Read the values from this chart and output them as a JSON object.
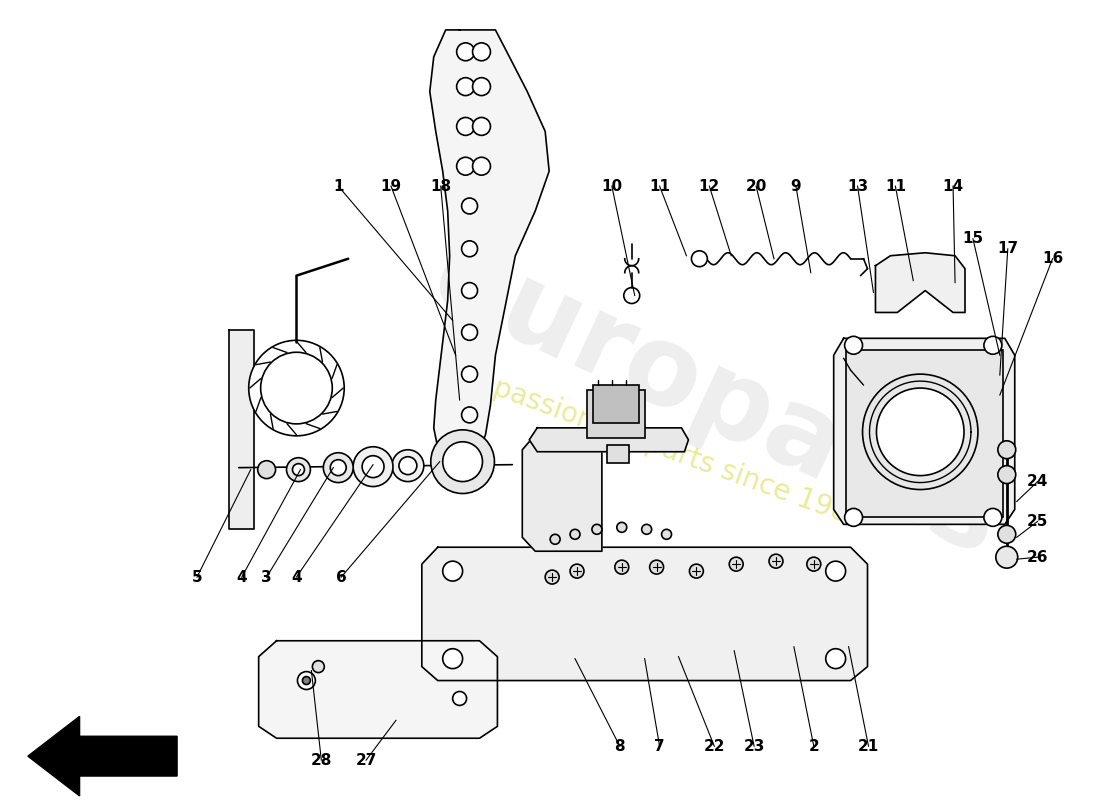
{
  "bg_color": "#ffffff",
  "watermark1": "europarts",
  "watermark2": "a passion for parts since 1985",
  "line_color": "#000000",
  "lw": 1.2,
  "label_fontsize": 11,
  "labels_leaders": [
    [
      "1",
      340,
      185,
      455,
      320
    ],
    [
      "19",
      393,
      185,
      458,
      355
    ],
    [
      "18",
      443,
      185,
      462,
      400
    ],
    [
      "10",
      615,
      185,
      638,
      295
    ],
    [
      "11",
      663,
      185,
      690,
      255
    ],
    [
      "12",
      713,
      185,
      735,
      255
    ],
    [
      "20",
      760,
      185,
      778,
      258
    ],
    [
      "9",
      800,
      185,
      815,
      272
    ],
    [
      "13",
      862,
      185,
      878,
      292
    ],
    [
      "11",
      900,
      185,
      918,
      280
    ],
    [
      "14",
      958,
      185,
      960,
      282
    ],
    [
      "15",
      978,
      238,
      1005,
      355
    ],
    [
      "17",
      1013,
      248,
      1005,
      375
    ],
    [
      "16",
      1058,
      258,
      1005,
      395
    ],
    [
      "5",
      198,
      578,
      252,
      470
    ],
    [
      "4",
      243,
      578,
      302,
      470
    ],
    [
      "3",
      268,
      578,
      335,
      468
    ],
    [
      "4",
      298,
      578,
      375,
      465
    ],
    [
      "6",
      343,
      578,
      442,
      462
    ],
    [
      "7",
      663,
      748,
      648,
      660
    ],
    [
      "8",
      623,
      748,
      578,
      660
    ],
    [
      "22",
      718,
      748,
      682,
      658
    ],
    [
      "23",
      758,
      748,
      738,
      652
    ],
    [
      "2",
      818,
      748,
      798,
      648
    ],
    [
      "21",
      873,
      748,
      853,
      648
    ],
    [
      "24",
      1043,
      482,
      1022,
      502
    ],
    [
      "25",
      1043,
      522,
      1022,
      538
    ],
    [
      "26",
      1043,
      558,
      1022,
      560
    ],
    [
      "27",
      368,
      762,
      398,
      722
    ],
    [
      "28",
      323,
      762,
      313,
      672
    ]
  ]
}
